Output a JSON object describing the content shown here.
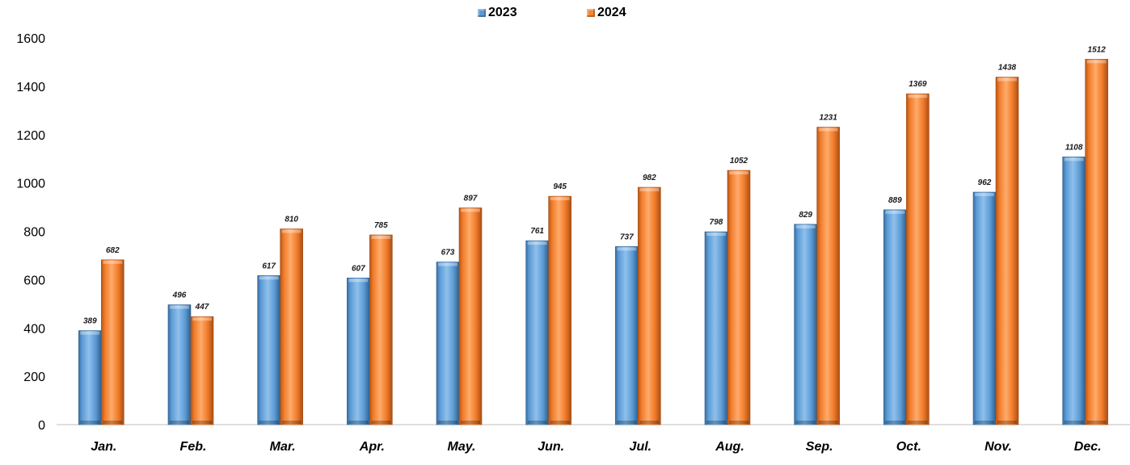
{
  "chart_data": {
    "type": "bar",
    "categories": [
      "Jan.",
      "Feb.",
      "Mar.",
      "Apr.",
      "May.",
      "Jun.",
      "Jul.",
      "Aug.",
      "Sep.",
      "Oct.",
      "Nov.",
      "Dec."
    ],
    "series": [
      {
        "name": "2023",
        "color": "#5B9BD5",
        "values": [
          389,
          496,
          617,
          607,
          673,
          761,
          737,
          798,
          829,
          889,
          962,
          1108
        ]
      },
      {
        "name": "2024",
        "color": "#F58634",
        "values": [
          682,
          447,
          810,
          785,
          897,
          945,
          982,
          1052,
          1231,
          1369,
          1438,
          1512
        ]
      }
    ],
    "ylim": [
      0,
      1600
    ],
    "yticks": [
      0,
      200,
      400,
      600,
      800,
      1000,
      1200,
      1400,
      1600
    ],
    "grid": false,
    "legend_position": "top-center",
    "data_labels": true
  }
}
